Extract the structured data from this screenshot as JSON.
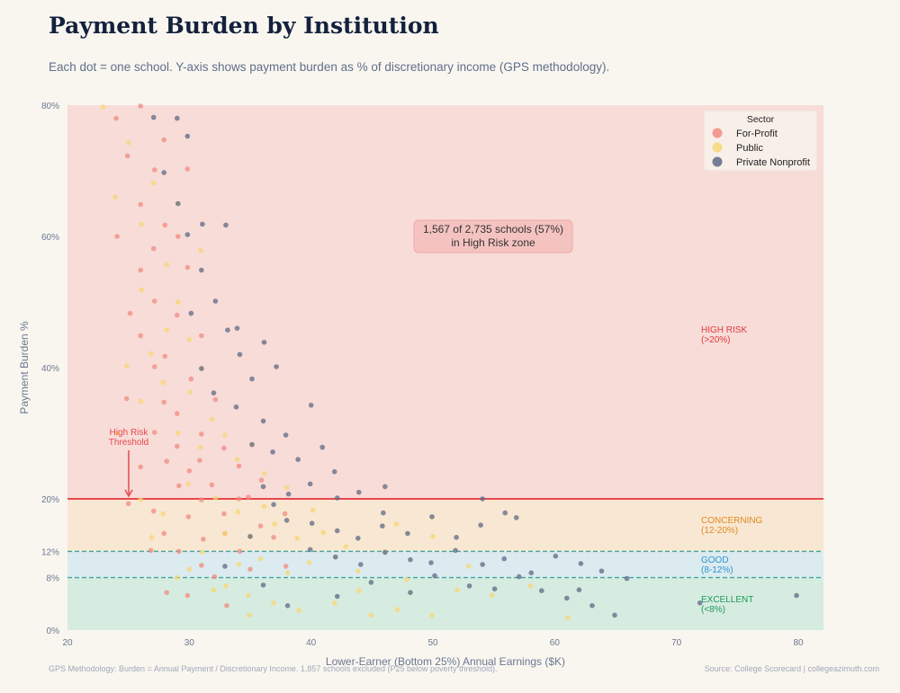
{
  "header": {
    "title": "Payment Burden by Institution",
    "subtitle": "Each dot = one school. Y-axis shows payment burden as % of discretionary income (GPS methodology)."
  },
  "footer": {
    "methodology": "GPS Methodology: Burden = Annual Payment / Discretionary Income. 1,857 schools excluded (P25 below poverty threshold).",
    "source": "Source: College Scorecard | collegeazimuth.com"
  },
  "chart_data": {
    "type": "scatter",
    "xlabel": "Lower-Earner (Bottom 25%) Annual Earnings ($K)",
    "ylabel": "Payment Burden %",
    "xlim": [
      20,
      82
    ],
    "ylim": [
      0,
      80
    ],
    "x_ticks": [
      20,
      30,
      40,
      50,
      60,
      70,
      80
    ],
    "y_ticks": [
      {
        "value": 0,
        "label": "0%"
      },
      {
        "value": 8,
        "label": "8%"
      },
      {
        "value": 12,
        "label": "12%"
      },
      {
        "value": 20,
        "label": "20%"
      },
      {
        "value": 40,
        "label": "40%"
      },
      {
        "value": 60,
        "label": "60%"
      },
      {
        "value": 80,
        "label": "80%"
      }
    ],
    "legend": {
      "title": "Sector",
      "placement": "top-right"
    },
    "zones": [
      {
        "label": "HIGH RISK",
        "range_label": "(>20%)",
        "from": 20,
        "to": 80,
        "fill": "#f7dcd8",
        "text_color": "#e03a3e"
      },
      {
        "label": "CONCERNING",
        "range_label": "(12-20%)",
        "from": 12,
        "to": 20,
        "fill": "#f8e7d2",
        "text_color": "#e08a20"
      },
      {
        "label": "GOOD",
        "range_label": "(8-12%)",
        "from": 8,
        "to": 12,
        "fill": "#dcebef",
        "text_color": "#2a96d0"
      },
      {
        "label": "EXCELLENT",
        "range_label": "(<8%)",
        "from": 0,
        "to": 8,
        "fill": "#d7ece0",
        "text_color": "#1a9a5a"
      }
    ],
    "threshold": {
      "value": 20,
      "label_line1": "High Risk",
      "label_line2": "Threshold",
      "color": "#e8484e"
    },
    "dashed_lines": [
      12,
      8
    ],
    "annotation": {
      "line1": "1,567 of 2,735 schools (57%)",
      "line2": "in High Risk zone"
    },
    "series": [
      {
        "name": "For-Profit",
        "color": "#f28b82",
        "points": [
          [
            24,
            78
          ],
          [
            25,
            72
          ],
          [
            26,
            80
          ],
          [
            26,
            65
          ],
          [
            27,
            70
          ],
          [
            27,
            58
          ],
          [
            28,
            62
          ],
          [
            27,
            50
          ],
          [
            26,
            45
          ],
          [
            28,
            42
          ],
          [
            29,
            48
          ],
          [
            30,
            55
          ],
          [
            31,
            45
          ],
          [
            28,
            35
          ],
          [
            27,
            30
          ],
          [
            29,
            33
          ],
          [
            30,
            38
          ],
          [
            31,
            30
          ],
          [
            32,
            35
          ],
          [
            26,
            25
          ],
          [
            28,
            26
          ],
          [
            29,
            22
          ],
          [
            30,
            24
          ],
          [
            31,
            20
          ],
          [
            33,
            28
          ],
          [
            34,
            25
          ],
          [
            32,
            22
          ],
          [
            27,
            18
          ],
          [
            28,
            15
          ],
          [
            30,
            17
          ],
          [
            31,
            14
          ],
          [
            33,
            18
          ],
          [
            35,
            20
          ],
          [
            36,
            16
          ],
          [
            29,
            12
          ],
          [
            31,
            10
          ],
          [
            34,
            12
          ],
          [
            37,
            14
          ],
          [
            32,
            8
          ],
          [
            35,
            9
          ],
          [
            28,
            6
          ],
          [
            30,
            5
          ],
          [
            33,
            4
          ],
          [
            38,
            10
          ],
          [
            25,
            35
          ],
          [
            26,
            55
          ],
          [
            24,
            60
          ],
          [
            25,
            48
          ],
          [
            29,
            60
          ],
          [
            30,
            70
          ],
          [
            27,
            40
          ],
          [
            33,
            15
          ],
          [
            34,
            20
          ],
          [
            36,
            23
          ],
          [
            28,
            75
          ],
          [
            29,
            28
          ],
          [
            31,
            26
          ],
          [
            25,
            19
          ],
          [
            27,
            12
          ],
          [
            38,
            18
          ]
        ]
      },
      {
        "name": "Public",
        "color": "#f7d774",
        "points": [
          [
            23,
            80
          ],
          [
            24,
            66
          ],
          [
            25,
            74
          ],
          [
            26,
            62
          ],
          [
            27,
            68
          ],
          [
            26,
            52
          ],
          [
            28,
            56
          ],
          [
            29,
            50
          ],
          [
            30,
            44
          ],
          [
            27,
            42
          ],
          [
            28,
            38
          ],
          [
            30,
            36
          ],
          [
            31,
            40
          ],
          [
            32,
            32
          ],
          [
            29,
            30
          ],
          [
            31,
            28
          ],
          [
            33,
            30
          ],
          [
            34,
            26
          ],
          [
            35,
            28
          ],
          [
            36,
            24
          ],
          [
            30,
            22
          ],
          [
            32,
            20
          ],
          [
            34,
            18
          ],
          [
            36,
            19
          ],
          [
            38,
            22
          ],
          [
            40,
            18
          ],
          [
            33,
            15
          ],
          [
            35,
            14
          ],
          [
            37,
            16
          ],
          [
            39,
            14
          ],
          [
            41,
            15
          ],
          [
            43,
            13
          ],
          [
            31,
            12
          ],
          [
            34,
            10
          ],
          [
            36,
            11
          ],
          [
            38,
            9
          ],
          [
            40,
            10
          ],
          [
            42,
            11
          ],
          [
            44,
            9
          ],
          [
            46,
            12
          ],
          [
            29,
            8
          ],
          [
            32,
            6
          ],
          [
            35,
            5
          ],
          [
            37,
            4
          ],
          [
            39,
            3
          ],
          [
            42,
            4
          ],
          [
            45,
            2
          ],
          [
            47,
            3
          ],
          [
            50,
            2
          ],
          [
            48,
            8
          ],
          [
            52,
            6
          ],
          [
            55,
            5
          ],
          [
            58,
            7
          ],
          [
            61,
            2
          ],
          [
            25,
            40
          ],
          [
            24,
            30
          ],
          [
            26,
            20
          ],
          [
            28,
            18
          ],
          [
            27,
            14
          ],
          [
            30,
            9
          ],
          [
            33,
            7
          ],
          [
            35,
            2
          ],
          [
            44,
            6
          ],
          [
            47,
            16
          ],
          [
            50,
            14
          ],
          [
            53,
            10
          ],
          [
            29,
            65
          ],
          [
            31,
            58
          ],
          [
            28,
            46
          ],
          [
            26,
            35
          ]
        ]
      },
      {
        "name": "Private Nonprofit",
        "color": "#5d6a85",
        "points": [
          [
            27,
            78
          ],
          [
            29,
            78
          ],
          [
            30,
            75
          ],
          [
            28,
            70
          ],
          [
            29,
            65
          ],
          [
            30,
            60
          ],
          [
            31,
            62
          ],
          [
            33,
            62
          ],
          [
            31,
            55
          ],
          [
            32,
            50
          ],
          [
            30,
            48
          ],
          [
            33,
            46
          ],
          [
            34,
            42
          ],
          [
            31,
            40
          ],
          [
            35,
            38
          ],
          [
            36,
            44
          ],
          [
            37,
            40
          ],
          [
            32,
            36
          ],
          [
            34,
            34
          ],
          [
            36,
            32
          ],
          [
            38,
            30
          ],
          [
            35,
            28
          ],
          [
            37,
            27
          ],
          [
            39,
            26
          ],
          [
            40,
            34
          ],
          [
            41,
            28
          ],
          [
            42,
            24
          ],
          [
            36,
            22
          ],
          [
            38,
            21
          ],
          [
            40,
            22
          ],
          [
            42,
            20
          ],
          [
            44,
            21
          ],
          [
            46,
            22
          ],
          [
            38,
            17
          ],
          [
            40,
            16
          ],
          [
            42,
            15
          ],
          [
            44,
            14
          ],
          [
            46,
            16
          ],
          [
            48,
            15
          ],
          [
            50,
            17
          ],
          [
            52,
            14
          ],
          [
            54,
            16
          ],
          [
            56,
            18
          ],
          [
            57,
            17
          ],
          [
            40,
            12
          ],
          [
            42,
            11
          ],
          [
            44,
            10
          ],
          [
            46,
            12
          ],
          [
            48,
            11
          ],
          [
            50,
            10
          ],
          [
            52,
            12
          ],
          [
            54,
            10
          ],
          [
            56,
            11
          ],
          [
            58,
            9
          ],
          [
            60,
            11
          ],
          [
            62,
            10
          ],
          [
            64,
            9
          ],
          [
            66,
            8
          ],
          [
            45,
            7
          ],
          [
            48,
            6
          ],
          [
            50,
            8
          ],
          [
            53,
            7
          ],
          [
            55,
            6
          ],
          [
            57,
            8
          ],
          [
            59,
            6
          ],
          [
            61,
            5
          ],
          [
            63,
            4
          ],
          [
            65,
            2
          ],
          [
            62,
            6
          ],
          [
            72,
            4
          ],
          [
            80,
            5
          ],
          [
            36,
            7
          ],
          [
            38,
            4
          ],
          [
            42,
            5
          ],
          [
            33,
            10
          ],
          [
            35,
            14
          ],
          [
            37,
            19
          ],
          [
            54,
            20
          ],
          [
            46,
            18
          ],
          [
            34,
            46
          ]
        ]
      }
    ]
  }
}
